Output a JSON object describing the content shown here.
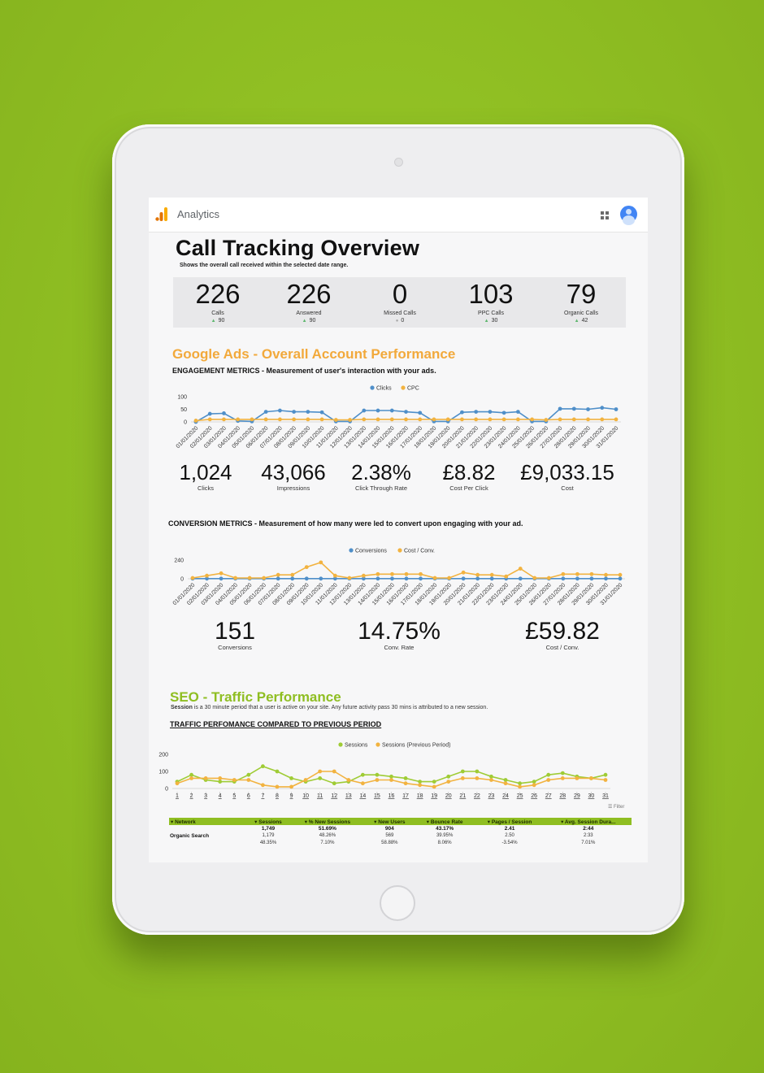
{
  "app": {
    "name": "Analytics",
    "logo_icon": "google-analytics-icon",
    "apps_icon": "apps-grid-icon",
    "avatar_icon": "account-avatar-icon"
  },
  "colors": {
    "background": "#8fbe22",
    "ads_accent": "#f2a93b",
    "seo_accent": "#8fbe22",
    "series_blue": "#4f8fc9",
    "series_orange": "#f2b340",
    "series_green": "#9fcc35"
  },
  "header": {
    "title": "Call Tracking Overview",
    "subtitle": "Shows the overall call received within the selected date range."
  },
  "kpis": [
    {
      "value": "226",
      "label": "Calls",
      "delta": "90",
      "trend": "up"
    },
    {
      "value": "226",
      "label": "Answered",
      "delta": "90",
      "trend": "up"
    },
    {
      "value": "0",
      "label": "Missed Calls",
      "delta": "0",
      "trend": "flat"
    },
    {
      "value": "103",
      "label": "PPC Calls",
      "delta": "30",
      "trend": "up"
    },
    {
      "value": "79",
      "label": "Organic Calls",
      "delta": "42",
      "trend": "up"
    }
  ],
  "ads": {
    "title": "Google Ads - Overall Account Performance",
    "engagement_heading": "ENGAGEMENT METRICS -  Measurement of user's interaction with your ads.",
    "engagement_stats": [
      {
        "value": "1,024",
        "label": "Clicks"
      },
      {
        "value": "43,066",
        "label": "Impressions"
      },
      {
        "value": "2.38%",
        "label": "Click Through Rate"
      },
      {
        "value": "£8.82",
        "label": "Cost Per Click"
      },
      {
        "value": "£9,033.15",
        "label": "Cost"
      }
    ],
    "conversion_heading": "CONVERSION METRICS - Measurement of how many were led to convert upon engaging with your ad.",
    "conversion_stats": [
      {
        "value": "151",
        "label": "Conversions"
      },
      {
        "value": "14.75%",
        "label": "Conv. Rate"
      },
      {
        "value": "£59.82",
        "label": "Cost / Conv."
      }
    ]
  },
  "seo": {
    "title": "SEO - Traffic Performance",
    "desc_bold": "Session",
    "desc_rest": " is a 30 minute period that a user is active on your site. Any future activity pass 30 mins is attributed to a new session.",
    "heading": "TRAFFIC PERFOMANCE COMPARED TO PREVIOUS PERIOD",
    "filter_label": "Filter",
    "table": {
      "columns": [
        "Network",
        "Sessions",
        "% New Sessions",
        "New Users",
        "Bounce Rate",
        "Pages / Session",
        "Avg. Session Dura..."
      ],
      "row": {
        "network": "Organic Search",
        "values": [
          [
            "1,749",
            "1,179",
            "48.35%"
          ],
          [
            "51.69%",
            "48.26%",
            "7.10%"
          ],
          [
            "904",
            "569",
            "58.88%"
          ],
          [
            "43.17%",
            "39.95%",
            "8.06%"
          ],
          [
            "2.41",
            "2.50",
            "-3.54%"
          ],
          [
            "2:44",
            "2:33",
            "7.01%"
          ]
        ]
      }
    }
  },
  "chart_data": [
    {
      "type": "line",
      "legend": [
        "Clicks",
        "CPC"
      ],
      "legend_position": "top-center",
      "x": [
        "01/01/2020",
        "02/01/2020",
        "03/01/2020",
        "04/01/2020",
        "05/01/2020",
        "06/01/2020",
        "07/01/2020",
        "08/01/2020",
        "09/01/2020",
        "10/01/2020",
        "11/01/2020",
        "12/01/2020",
        "13/01/2020",
        "14/01/2020",
        "15/01/2020",
        "16/01/2020",
        "17/01/2020",
        "18/01/2020",
        "19/01/2020",
        "20/01/2020",
        "21/01/2020",
        "22/01/2020",
        "23/01/2020",
        "24/01/2020",
        "25/01/2020",
        "26/01/2020",
        "27/01/2020",
        "28/01/2020",
        "29/01/2020",
        "30/01/2020",
        "31/01/2020"
      ],
      "y_ticks": [
        0,
        50,
        100
      ],
      "ylim": [
        0,
        100
      ],
      "series": [
        {
          "name": "Clicks",
          "values": [
            0,
            32,
            34,
            4,
            2,
            40,
            45,
            40,
            40,
            38,
            2,
            2,
            45,
            45,
            45,
            40,
            36,
            2,
            2,
            38,
            40,
            40,
            36,
            40,
            2,
            2,
            52,
            52,
            50,
            56,
            50
          ]
        },
        {
          "name": "CPC",
          "values": [
            5,
            10,
            10,
            10,
            10,
            10,
            10,
            10,
            10,
            10,
            8,
            8,
            10,
            10,
            10,
            10,
            10,
            10,
            10,
            10,
            10,
            10,
            10,
            10,
            10,
            8,
            10,
            10,
            10,
            10,
            10
          ]
        }
      ]
    },
    {
      "type": "line",
      "legend": [
        "Conversions",
        "Cost / Conv."
      ],
      "legend_position": "top-center",
      "x": [
        "01/01/2020",
        "02/01/2020",
        "03/01/2020",
        "04/01/2020",
        "05/01/2020",
        "06/01/2020",
        "07/01/2020",
        "08/01/2020",
        "09/01/2020",
        "10/01/2020",
        "11/01/2020",
        "12/01/2020",
        "13/01/2020",
        "14/01/2020",
        "15/01/2020",
        "16/01/2020",
        "17/01/2020",
        "18/01/2020",
        "19/01/2020",
        "20/01/2020",
        "21/01/2020",
        "22/01/2020",
        "23/01/2020",
        "24/01/2020",
        "25/01/2020",
        "26/01/2020",
        "27/01/2020",
        "28/01/2020",
        "29/01/2020",
        "30/01/2020",
        "31/01/2020"
      ],
      "y_ticks": [
        0,
        240
      ],
      "ylim": [
        0,
        240
      ],
      "series": [
        {
          "name": "Conversions",
          "values": [
            2,
            2,
            2,
            2,
            2,
            2,
            2,
            2,
            2,
            2,
            2,
            2,
            2,
            2,
            2,
            2,
            2,
            2,
            2,
            2,
            2,
            2,
            2,
            2,
            2,
            2,
            2,
            2,
            2,
            2,
            2
          ]
        },
        {
          "name": "Cost / Conv.",
          "values": [
            10,
            40,
            70,
            10,
            10,
            10,
            50,
            50,
            150,
            210,
            40,
            10,
            40,
            60,
            60,
            60,
            60,
            10,
            10,
            80,
            50,
            50,
            30,
            130,
            10,
            10,
            60,
            60,
            60,
            50,
            50
          ]
        }
      ]
    },
    {
      "type": "line",
      "legend": [
        "Sessions",
        "Sessions (Previous Period)"
      ],
      "legend_position": "top-center",
      "x": [
        1,
        2,
        3,
        4,
        5,
        6,
        7,
        8,
        9,
        10,
        11,
        12,
        13,
        14,
        15,
        16,
        17,
        18,
        19,
        20,
        21,
        22,
        23,
        24,
        25,
        26,
        27,
        28,
        29,
        30,
        31
      ],
      "y_ticks": [
        0,
        100,
        200
      ],
      "ylim": [
        0,
        200
      ],
      "series": [
        {
          "name": "Sessions",
          "values": [
            40,
            80,
            50,
            40,
            40,
            80,
            130,
            100,
            60,
            40,
            60,
            30,
            40,
            80,
            80,
            70,
            60,
            40,
            40,
            70,
            100,
            100,
            70,
            50,
            30,
            40,
            80,
            90,
            70,
            60,
            80
          ]
        },
        {
          "name": "Sessions (Previous Period)",
          "values": [
            30,
            60,
            60,
            60,
            50,
            50,
            20,
            10,
            10,
            50,
            100,
            100,
            50,
            30,
            50,
            50,
            30,
            20,
            10,
            40,
            60,
            60,
            50,
            30,
            10,
            20,
            50,
            60,
            60,
            60,
            50
          ]
        }
      ]
    }
  ]
}
